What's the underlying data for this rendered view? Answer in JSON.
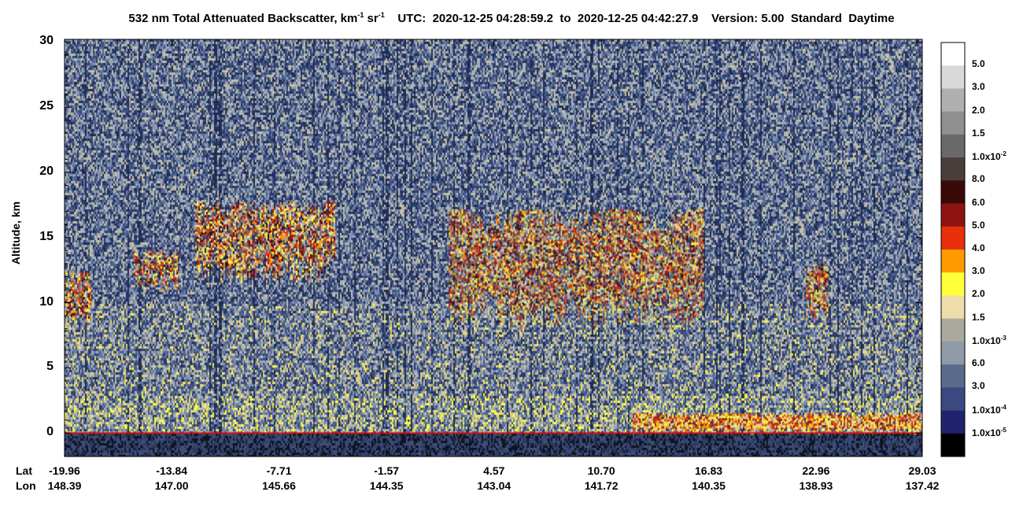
{
  "title": {
    "part1": "532 nm Total Attenuated Backscatter, km",
    "sup1": "-1",
    "part2": " sr",
    "sup2": "-1",
    "part3": "    UTC:  2020-12-25 04:28:59.2  to  2020-12-25 04:42:27.9    Version: 5.00  Standard  Daytime"
  },
  "chart_data": {
    "type": "heatmap",
    "ylabel": "Altitude, km",
    "ylim": [
      -1.8,
      30.2
    ],
    "yticks": [
      "30",
      "25",
      "20",
      "15",
      "10",
      "5",
      "0"
    ],
    "ytick_values": [
      30,
      25,
      20,
      15,
      10,
      5,
      0
    ],
    "x_row_labels": [
      "Lat",
      "Lon"
    ],
    "lat_ticks": [
      "-19.96",
      "-13.84",
      "-7.71",
      "-1.57",
      "4.57",
      "10.70",
      "16.83",
      "22.96",
      "29.03"
    ],
    "lon_ticks": [
      "148.39",
      "147.00",
      "145.66",
      "144.35",
      "143.04",
      "141.72",
      "140.35",
      "138.93",
      "137.42"
    ],
    "colorbar": {
      "labels": [
        {
          "base": "5.0",
          "exp": ""
        },
        {
          "base": "3.0",
          "exp": ""
        },
        {
          "base": "2.0",
          "exp": ""
        },
        {
          "base": "1.5",
          "exp": ""
        },
        {
          "base": "1.0x10",
          "exp": "-2"
        },
        {
          "base": "8.0",
          "exp": ""
        },
        {
          "base": "6.0",
          "exp": ""
        },
        {
          "base": "5.0",
          "exp": ""
        },
        {
          "base": "4.0",
          "exp": ""
        },
        {
          "base": "3.0",
          "exp": ""
        },
        {
          "base": "2.0",
          "exp": ""
        },
        {
          "base": "1.5",
          "exp": ""
        },
        {
          "base": "1.0x10",
          "exp": "-3"
        },
        {
          "base": "6.0",
          "exp": ""
        },
        {
          "base": "3.0",
          "exp": ""
        },
        {
          "base": "1.0x10",
          "exp": "-4"
        },
        {
          "base": "1.0x10",
          "exp": "-5"
        }
      ],
      "colors": [
        "#ffffff",
        "#d9d9d9",
        "#b0b0b0",
        "#8f8f8f",
        "#6a6a6a",
        "#4a3e3a",
        "#3a0a08",
        "#8e1410",
        "#e8300c",
        "#ff9a00",
        "#ffff3a",
        "#eedcaa",
        "#aaa9a0",
        "#8e9aa6",
        "#5a6c8c",
        "#3a4a80",
        "#22236e",
        "#000000"
      ]
    },
    "features": [
      {
        "kind": "cirrus",
        "lat_range": [
          -19.96,
          -18.5
        ],
        "alt_km": [
          8.5,
          12.5
        ]
      },
      {
        "kind": "cirrus",
        "lat_range": [
          -16.0,
          -13.5
        ],
        "alt_km": [
          11.0,
          14.0
        ]
      },
      {
        "kind": "cirrus",
        "lat_range": [
          -12.5,
          -4.5
        ],
        "alt_km": [
          11.5,
          17.8
        ]
      },
      {
        "kind": "cirrus",
        "lat_range": [
          2.0,
          16.5
        ],
        "alt_km": [
          8.0,
          17.2
        ]
      },
      {
        "kind": "cirrus",
        "lat_range": [
          22.4,
          23.6
        ],
        "alt_km": [
          8.5,
          13.0
        ]
      },
      {
        "kind": "surface_layer",
        "lat_range": [
          12.5,
          29.03
        ],
        "alt_km": [
          0.0,
          1.5
        ]
      }
    ],
    "surface_line_color": "#d01010"
  }
}
